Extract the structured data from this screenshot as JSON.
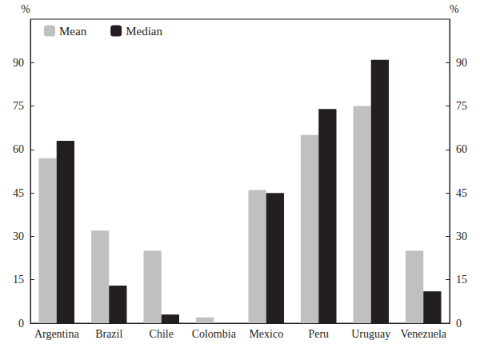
{
  "chart_data": {
    "type": "bar",
    "categories": [
      "Argentina",
      "Brazil",
      "Chile",
      "Colombia",
      "Mexico",
      "Peru",
      "Uruguay",
      "Venezuela"
    ],
    "series": [
      {
        "name": "Mean",
        "color": "#c0c0c0",
        "values": [
          57,
          32,
          25,
          2,
          46,
          65,
          75,
          25
        ]
      },
      {
        "name": "Median",
        "color": "#231f20",
        "values": [
          63,
          13,
          3,
          0,
          45,
          74,
          91,
          11
        ]
      }
    ],
    "y_label": "%",
    "y2_label": "%",
    "ylim": [
      0,
      105
    ],
    "yticks": [
      0,
      15,
      30,
      45,
      60,
      75,
      90
    ],
    "y2lim": [
      0,
      105
    ],
    "y2ticks": [
      0,
      15,
      30,
      45,
      60,
      75,
      90
    ],
    "grid": false,
    "legend": "upper left"
  }
}
